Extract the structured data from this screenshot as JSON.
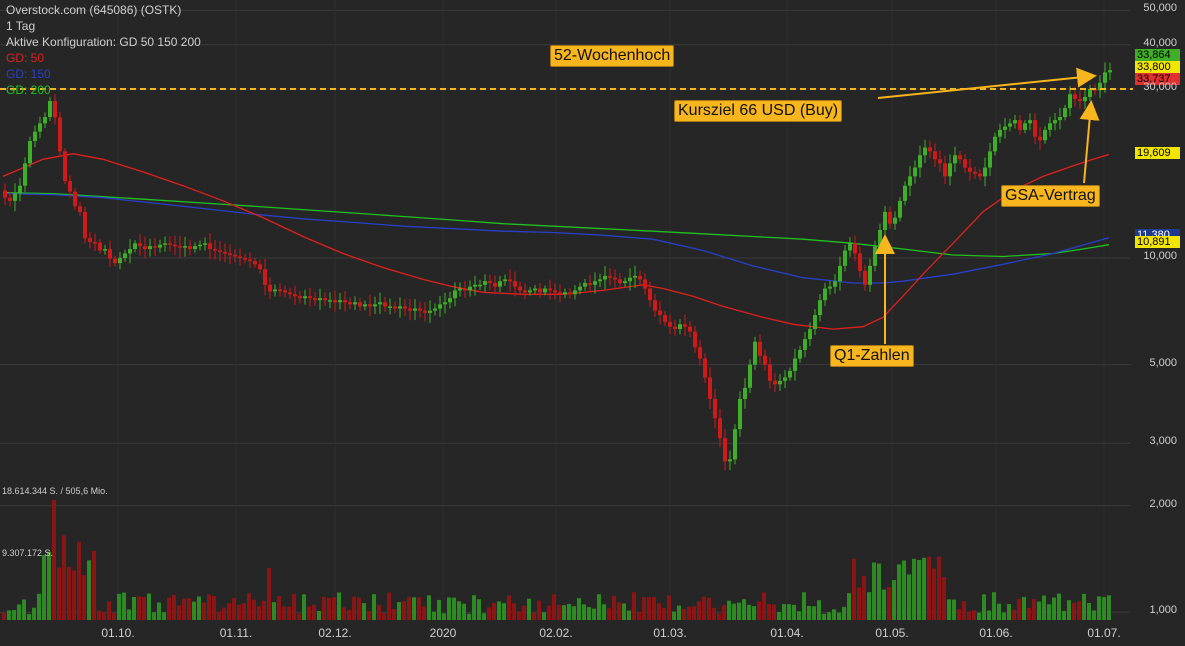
{
  "header": {
    "instrument": "Overstock.com (645086) (OSTK)",
    "interval": "1 Tag",
    "config": "Aktive Konfiguration: GD 50 150 200",
    "ma50_label": "GD: 50",
    "ma150_label": "GD: 150",
    "ma200_label": "GD: 200"
  },
  "colors": {
    "background": "#262626",
    "up": "#3fae29",
    "down": "#d01a1a",
    "ma50": "#e02020",
    "ma150": "#2a3fc8",
    "ma200": "#22c022",
    "annotation": "#f7b51e",
    "grid": "#3a3a3a"
  },
  "volume": {
    "max_label": "18.614.344 S. / 505,6 Mio.",
    "mid_label": "9.307.172 S."
  },
  "annotations": {
    "high52": "52-Wochenhoch",
    "target": "Kursziel 66 USD (Buy)",
    "q1": "Q1-Zahlen",
    "gsa": "GSA-Vertrag"
  },
  "price_tags": {
    "last": "33,864",
    "ask": "33,800",
    "bid": "33,737",
    "ma50": "19,609",
    "ma150": "11,380",
    "ma200": "10,891"
  },
  "chart_data": {
    "type": "candlestick",
    "title": "Overstock.com (645086) (OSTK)",
    "y_scale": "log",
    "y_ticks": [
      "50,000",
      "40,000",
      "30,000",
      "10,000",
      "5,000",
      "3,000",
      "2,000",
      "1,000"
    ],
    "y_tick_values": [
      50,
      40,
      30,
      10,
      5,
      3,
      2,
      1
    ],
    "x_ticks": [
      "01.10.",
      "01.11.",
      "02.12.",
      "2020",
      "02.02.",
      "01.03.",
      "01.04.",
      "01.05.",
      "01.06.",
      "01.07."
    ],
    "legend_placement": "top-left",
    "grid": true,
    "price_path": [
      [
        0,
        15.5
      ],
      [
        5,
        14.8
      ],
      [
        10,
        14.5
      ],
      [
        15,
        15.2
      ],
      [
        20,
        16.0
      ],
      [
        25,
        18.5
      ],
      [
        28,
        21.0
      ],
      [
        33,
        22.0
      ],
      [
        37,
        23.5
      ],
      [
        40,
        24.0
      ],
      [
        45,
        25.0
      ],
      [
        48,
        27.5
      ],
      [
        52,
        28.0
      ],
      [
        56,
        24.0
      ],
      [
        60,
        20.0
      ],
      [
        63,
        17.0
      ],
      [
        67,
        16.0
      ],
      [
        71,
        15.2
      ],
      [
        75,
        14.0
      ],
      [
        80,
        13.5
      ],
      [
        84,
        11.5
      ],
      [
        88,
        11.0
      ],
      [
        92,
        11.2
      ],
      [
        96,
        11.0
      ],
      [
        100,
        10.5
      ],
      [
        104,
        10.8
      ],
      [
        108,
        10.0
      ],
      [
        112,
        9.9
      ],
      [
        116,
        9.6
      ],
      [
        120,
        10.0
      ],
      [
        125,
        10.3
      ],
      [
        130,
        10.6
      ],
      [
        135,
        11.0
      ],
      [
        140,
        10.8
      ],
      [
        145,
        10.6
      ],
      [
        150,
        10.8
      ],
      [
        155,
        10.7
      ],
      [
        160,
        10.9
      ],
      [
        165,
        11.0
      ],
      [
        170,
        10.9
      ],
      [
        175,
        10.8
      ],
      [
        180,
        10.7
      ],
      [
        185,
        10.8
      ],
      [
        190,
        10.6
      ],
      [
        195,
        10.8
      ],
      [
        200,
        10.9
      ],
      [
        205,
        11.0
      ],
      [
        210,
        10.6
      ],
      [
        215,
        10.5
      ],
      [
        220,
        10.4
      ],
      [
        225,
        10.3
      ],
      [
        230,
        10.2
      ],
      [
        235,
        10.1
      ],
      [
        240,
        10.0
      ],
      [
        245,
        9.9
      ],
      [
        250,
        9.8
      ],
      [
        255,
        9.6
      ],
      [
        260,
        9.3
      ],
      [
        265,
        8.4
      ],
      [
        268,
        8.1
      ],
      [
        272,
        8.0
      ],
      [
        276,
        8.2
      ],
      [
        280,
        8.1
      ],
      [
        285,
        8.0
      ],
      [
        290,
        7.9
      ],
      [
        295,
        7.8
      ],
      [
        300,
        7.7
      ],
      [
        305,
        7.8
      ],
      [
        310,
        7.7
      ],
      [
        315,
        7.6
      ],
      [
        320,
        7.7
      ],
      [
        325,
        7.6
      ],
      [
        330,
        7.6
      ],
      [
        335,
        7.5
      ],
      [
        340,
        7.6
      ],
      [
        345,
        7.5
      ],
      [
        350,
        7.4
      ],
      [
        355,
        7.5
      ],
      [
        360,
        7.3
      ],
      [
        365,
        7.4
      ],
      [
        370,
        7.3
      ],
      [
        375,
        7.4
      ],
      [
        380,
        7.5
      ],
      [
        385,
        7.3
      ],
      [
        390,
        7.3
      ],
      [
        395,
        7.2
      ],
      [
        400,
        7.3
      ],
      [
        405,
        7.2
      ],
      [
        410,
        7.1
      ],
      [
        415,
        7.2
      ],
      [
        420,
        7.1
      ],
      [
        425,
        7.0
      ],
      [
        430,
        7.1
      ],
      [
        435,
        7.2
      ],
      [
        440,
        7.4
      ],
      [
        445,
        7.5
      ],
      [
        450,
        7.7
      ],
      [
        455,
        8.1
      ],
      [
        460,
        8.2
      ],
      [
        465,
        8.1
      ],
      [
        470,
        8.3
      ],
      [
        475,
        8.4
      ],
      [
        480,
        8.4
      ],
      [
        485,
        8.6
      ],
      [
        490,
        8.5
      ],
      [
        495,
        8.3
      ],
      [
        500,
        8.6
      ],
      [
        505,
        8.7
      ],
      [
        510,
        8.6
      ],
      [
        515,
        8.3
      ],
      [
        520,
        8.1
      ],
      [
        525,
        8.0
      ],
      [
        530,
        8.1
      ],
      [
        535,
        8.2
      ],
      [
        540,
        8.0
      ],
      [
        545,
        8.2
      ],
      [
        550,
        8.1
      ],
      [
        555,
        8.0
      ],
      [
        560,
        7.9
      ],
      [
        565,
        8.0
      ],
      [
        570,
        7.9
      ],
      [
        575,
        8.1
      ],
      [
        580,
        8.3
      ],
      [
        585,
        8.5
      ],
      [
        590,
        8.4
      ],
      [
        595,
        8.6
      ],
      [
        600,
        8.7
      ],
      [
        605,
        8.9
      ],
      [
        610,
        8.8
      ],
      [
        615,
        8.7
      ],
      [
        620,
        8.5
      ],
      [
        625,
        8.6
      ],
      [
        630,
        8.8
      ],
      [
        635,
        8.9
      ],
      [
        640,
        8.7
      ],
      [
        645,
        8.2
      ],
      [
        650,
        7.6
      ],
      [
        655,
        7.1
      ],
      [
        660,
        6.9
      ],
      [
        665,
        6.6
      ],
      [
        670,
        6.4
      ],
      [
        675,
        6.3
      ],
      [
        680,
        6.5
      ],
      [
        685,
        6.4
      ],
      [
        690,
        6.2
      ],
      [
        695,
        5.6
      ],
      [
        700,
        5.2
      ],
      [
        705,
        4.6
      ],
      [
        710,
        4.0
      ],
      [
        713,
        3.8
      ],
      [
        716,
        3.4
      ],
      [
        720,
        3.1
      ],
      [
        724,
        2.7
      ],
      [
        727,
        2.6
      ],
      [
        730,
        2.7
      ],
      [
        733,
        2.9
      ],
      [
        736,
        3.5
      ],
      [
        740,
        4.0
      ],
      [
        745,
        4.3
      ],
      [
        750,
        5.0
      ],
      [
        755,
        5.8
      ],
      [
        760,
        5.3
      ],
      [
        765,
        5.0
      ],
      [
        770,
        4.5
      ],
      [
        775,
        4.4
      ],
      [
        780,
        4.5
      ],
      [
        785,
        4.6
      ],
      [
        790,
        4.8
      ],
      [
        795,
        5.2
      ],
      [
        800,
        5.5
      ],
      [
        805,
        5.9
      ],
      [
        810,
        6.3
      ],
      [
        815,
        6.9
      ],
      [
        820,
        7.6
      ],
      [
        825,
        8.2
      ],
      [
        830,
        8.3
      ],
      [
        835,
        8.6
      ],
      [
        840,
        9.5
      ],
      [
        845,
        10.5
      ],
      [
        850,
        11.0
      ],
      [
        855,
        10.3
      ],
      [
        860,
        9.2
      ],
      [
        865,
        8.4
      ],
      [
        870,
        9.5
      ],
      [
        875,
        10.8
      ],
      [
        880,
        12.0
      ],
      [
        885,
        13.5
      ],
      [
        890,
        12.5
      ],
      [
        895,
        13.0
      ],
      [
        900,
        14.5
      ],
      [
        905,
        16.0
      ],
      [
        910,
        17.0
      ],
      [
        915,
        18.0
      ],
      [
        920,
        19.5
      ],
      [
        925,
        20.5
      ],
      [
        930,
        20.0
      ],
      [
        935,
        19.0
      ],
      [
        940,
        18.5
      ],
      [
        945,
        17.0
      ],
      [
        950,
        18.5
      ],
      [
        955,
        19.5
      ],
      [
        960,
        19.0
      ],
      [
        965,
        18.0
      ],
      [
        970,
        17.5
      ],
      [
        975,
        17.3
      ],
      [
        980,
        17.0
      ],
      [
        985,
        18.0
      ],
      [
        990,
        20.0
      ],
      [
        995,
        22.0
      ],
      [
        1000,
        23.0
      ],
      [
        1005,
        23.5
      ],
      [
        1010,
        24.0
      ],
      [
        1015,
        24.5
      ],
      [
        1020,
        23.0
      ],
      [
        1025,
        24.0
      ],
      [
        1030,
        24.5
      ],
      [
        1035,
        22.0
      ],
      [
        1040,
        21.5
      ],
      [
        1045,
        23.0
      ],
      [
        1050,
        24.0
      ],
      [
        1055,
        24.5
      ],
      [
        1060,
        25.0
      ],
      [
        1065,
        26.5
      ],
      [
        1070,
        29.0
      ],
      [
        1074,
        28.0
      ],
      [
        1078,
        28.5
      ],
      [
        1082,
        27.0
      ],
      [
        1086,
        29.0
      ],
      [
        1090,
        30.0
      ],
      [
        1094,
        29.5
      ],
      [
        1098,
        30.5
      ],
      [
        1102,
        32.0
      ],
      [
        1106,
        33.9
      ]
    ],
    "ma50_path": [
      [
        0,
        17.0
      ],
      [
        40,
        19.0
      ],
      [
        70,
        19.7
      ],
      [
        100,
        19.0
      ],
      [
        140,
        17.5
      ],
      [
        180,
        16.0
      ],
      [
        220,
        14.5
      ],
      [
        260,
        13.0
      ],
      [
        300,
        11.5
      ],
      [
        340,
        10.3
      ],
      [
        380,
        9.4
      ],
      [
        420,
        8.7
      ],
      [
        450,
        8.3
      ],
      [
        480,
        8.0
      ],
      [
        520,
        7.9
      ],
      [
        560,
        7.9
      ],
      [
        600,
        8.1
      ],
      [
        640,
        8.4
      ],
      [
        660,
        8.2
      ],
      [
        690,
        7.8
      ],
      [
        720,
        7.3
      ],
      [
        760,
        6.8
      ],
      [
        790,
        6.5
      ],
      [
        830,
        6.3
      ],
      [
        860,
        6.4
      ],
      [
        880,
        6.8
      ],
      [
        900,
        7.8
      ],
      [
        920,
        9.0
      ],
      [
        950,
        11.0
      ],
      [
        980,
        13.5
      ],
      [
        1010,
        15.5
      ],
      [
        1040,
        17.0
      ],
      [
        1070,
        18.2
      ],
      [
        1090,
        19.0
      ],
      [
        1106,
        19.6
      ]
    ],
    "ma150_path": [
      [
        0,
        15.2
      ],
      [
        50,
        15.1
      ],
      [
        100,
        14.8
      ],
      [
        150,
        14.3
      ],
      [
        200,
        13.8
      ],
      [
        250,
        13.3
      ],
      [
        300,
        12.9
      ],
      [
        350,
        12.6
      ],
      [
        400,
        12.3
      ],
      [
        450,
        12.1
      ],
      [
        500,
        11.9
      ],
      [
        550,
        11.8
      ],
      [
        600,
        11.6
      ],
      [
        650,
        11.3
      ],
      [
        700,
        10.5
      ],
      [
        750,
        9.5
      ],
      [
        800,
        8.8
      ],
      [
        850,
        8.5
      ],
      [
        880,
        8.5
      ],
      [
        900,
        8.6
      ],
      [
        950,
        9.0
      ],
      [
        1000,
        9.6
      ],
      [
        1050,
        10.3
      ],
      [
        1106,
        11.4
      ]
    ],
    "ma200_path": [
      [
        0,
        15.3
      ],
      [
        50,
        15.2
      ],
      [
        100,
        14.9
      ],
      [
        150,
        14.6
      ],
      [
        200,
        14.3
      ],
      [
        250,
        14.0
      ],
      [
        300,
        13.7
      ],
      [
        350,
        13.4
      ],
      [
        400,
        13.1
      ],
      [
        450,
        12.8
      ],
      [
        500,
        12.5
      ],
      [
        550,
        12.3
      ],
      [
        600,
        12.1
      ],
      [
        650,
        11.9
      ],
      [
        700,
        11.7
      ],
      [
        750,
        11.5
      ],
      [
        800,
        11.3
      ],
      [
        850,
        11.0
      ],
      [
        900,
        10.6
      ],
      [
        950,
        10.2
      ],
      [
        1000,
        10.1
      ],
      [
        1050,
        10.3
      ],
      [
        1080,
        10.6
      ],
      [
        1106,
        10.9
      ]
    ]
  }
}
